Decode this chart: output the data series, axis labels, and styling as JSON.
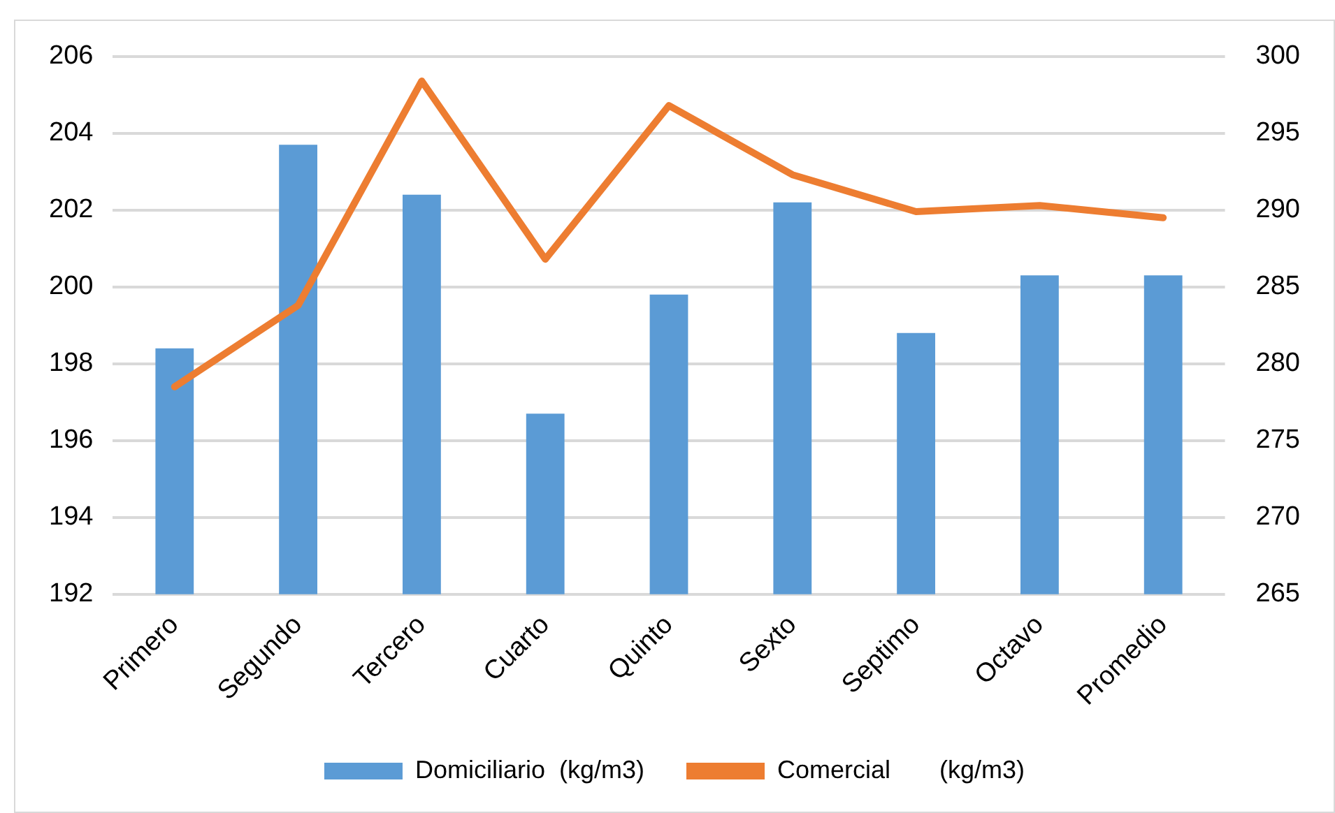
{
  "chart_data": {
    "type": "bar",
    "categories": [
      "Primero",
      "Segundo",
      "Tercero",
      "Cuarto",
      "Quinto",
      "Sexto",
      "Septimo",
      "Octavo",
      "Promedio"
    ],
    "series": [
      {
        "name": "Domiciliario  (kg/m3)",
        "color": "#5b9bd5",
        "values": [
          198.4,
          203.7,
          202.4,
          196.7,
          199.8,
          202.2,
          198.8,
          200.3,
          200.3
        ]
      },
      {
        "name": "Comercial       (kg/m3)",
        "type": "line",
        "axis": "y2",
        "color": "#ed7d31",
        "values": [
          278.5,
          283.8,
          298.4,
          286.8,
          296.8,
          292.3,
          289.9,
          290.3,
          289.5
        ]
      }
    ],
    "ylim": [
      192,
      206
    ],
    "yticks": [
      192,
      194,
      196,
      198,
      200,
      202,
      204,
      206
    ],
    "y2lim": [
      265,
      300
    ],
    "y2ticks": [
      265,
      270,
      275,
      280,
      285,
      290,
      295,
      300
    ],
    "grid": "y",
    "legend": "bottom",
    "marker": "none"
  }
}
